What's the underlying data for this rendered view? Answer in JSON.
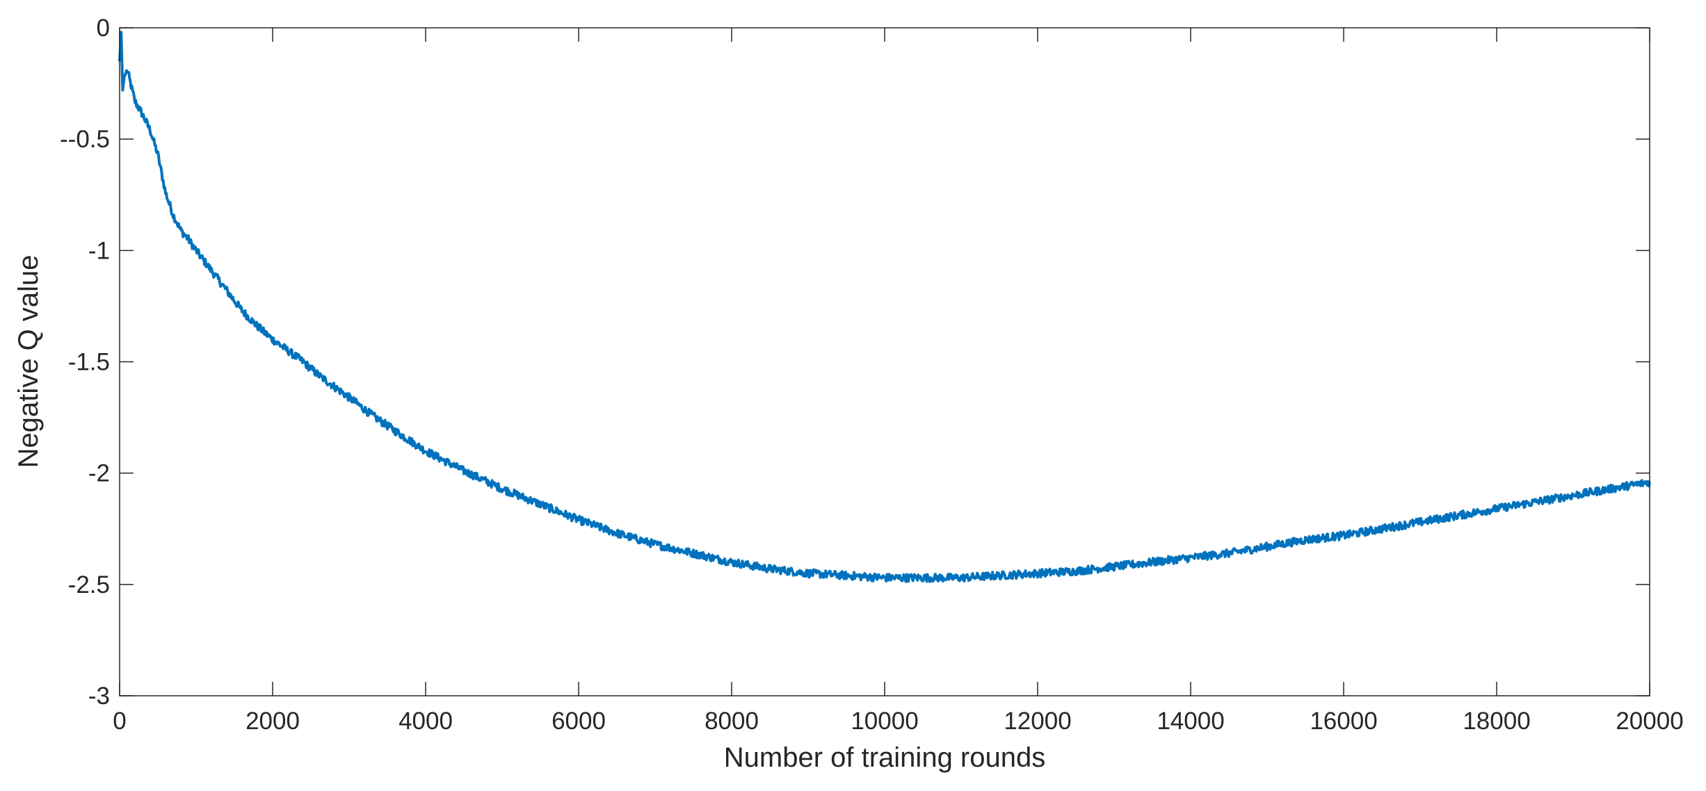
{
  "chart_data": {
    "type": "line",
    "title": "",
    "xlabel": "Number of training rounds",
    "ylabel": "Negative Q value",
    "xlim": [
      0,
      20000
    ],
    "ylim": [
      -3,
      0
    ],
    "x_ticks": [
      0,
      2000,
      4000,
      6000,
      8000,
      10000,
      12000,
      14000,
      16000,
      18000,
      20000
    ],
    "x_tick_labels": [
      "0",
      "2000",
      "4000",
      "6000",
      "8000",
      "10000",
      "12000",
      "14000",
      "16000",
      "18000",
      "20000"
    ],
    "y_ticks": [
      0,
      -0.5,
      -1,
      -1.5,
      -2,
      -2.5,
      -3
    ],
    "y_tick_labels": [
      "0",
      "--0.5",
      "-1",
      "-1.5",
      "-2",
      "-2.5",
      "-3"
    ],
    "grid": false,
    "line_color": "#0072BD",
    "series": [
      {
        "x": [
          0,
          20,
          40,
          60,
          100,
          150,
          200,
          300,
          400,
          500,
          600,
          700,
          800,
          900,
          1000,
          1200,
          1400,
          1600,
          1800,
          2000,
          2200,
          2400,
          2600,
          2800,
          3000,
          3300,
          3600,
          4000,
          4500,
          5000,
          5500,
          6000,
          6500,
          7000,
          7500,
          8000,
          8500,
          9000,
          9500,
          10000,
          10500,
          11000,
          11500,
          12000,
          12500,
          13000,
          13500,
          14000,
          14500,
          15000,
          15500,
          16000,
          16500,
          17000,
          17500,
          18000,
          18500,
          19000,
          19500,
          20000
        ],
        "y": [
          -0.15,
          -0.02,
          -0.28,
          -0.22,
          -0.19,
          -0.26,
          -0.33,
          -0.39,
          -0.46,
          -0.57,
          -0.74,
          -0.84,
          -0.91,
          -0.95,
          -1.0,
          -1.09,
          -1.18,
          -1.27,
          -1.34,
          -1.4,
          -1.45,
          -1.5,
          -1.56,
          -1.61,
          -1.66,
          -1.74,
          -1.81,
          -1.9,
          -1.99,
          -2.07,
          -2.14,
          -2.21,
          -2.27,
          -2.32,
          -2.36,
          -2.4,
          -2.43,
          -2.45,
          -2.46,
          -2.47,
          -2.47,
          -2.47,
          -2.46,
          -2.45,
          -2.44,
          -2.42,
          -2.4,
          -2.38,
          -2.36,
          -2.33,
          -2.3,
          -2.28,
          -2.25,
          -2.22,
          -2.19,
          -2.16,
          -2.13,
          -2.1,
          -2.07,
          -2.04
        ]
      }
    ]
  }
}
